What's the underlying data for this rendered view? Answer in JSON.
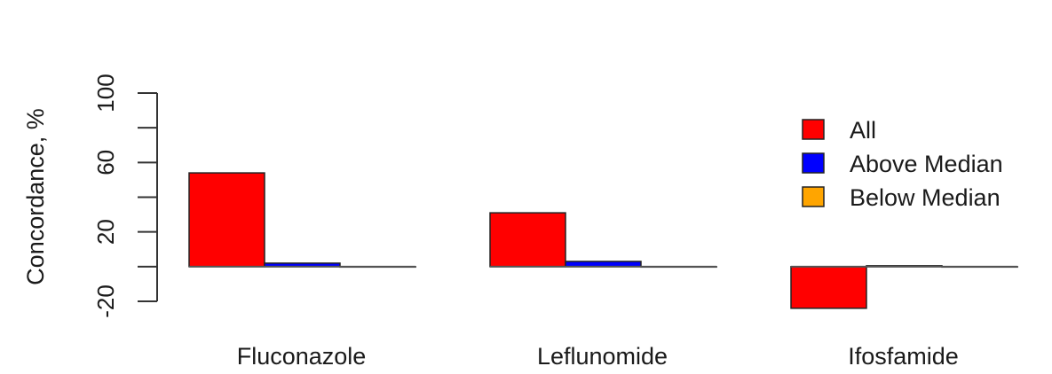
{
  "chart_data": {
    "type": "bar",
    "ylabel": "Concordance, %",
    "ylim": [
      -20,
      100
    ],
    "yticks": [
      -20,
      20,
      60,
      100
    ],
    "categories": [
      "Fluconazole",
      "Leflunomide",
      "Ifosfamide"
    ],
    "series": [
      {
        "name": "All",
        "color": "#ff0000",
        "values": [
          54,
          31,
          -24
        ]
      },
      {
        "name": "Above Median",
        "color": "#0000ff",
        "values": [
          2,
          3,
          0.5
        ]
      },
      {
        "name": "Below Median",
        "color": "#ffa500",
        "values": [
          0,
          0,
          0
        ]
      }
    ],
    "legend_position": "right",
    "grid": false
  }
}
